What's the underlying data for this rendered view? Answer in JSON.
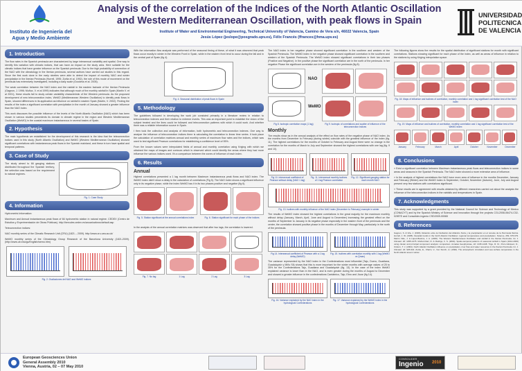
{
  "header": {
    "logo_left": [
      "Instituto de Ingeniería del",
      "Agua y Medio Ambiente"
    ],
    "title_line1": "Analysis of the correlation of the Indices of the North Atlantic Oscillation",
    "title_line2": "and Western Mediterranean Oscillation, with peak flows in Spain",
    "affiliation": "Institute of Water and Environmental Engineering, Technical University of Valencia, Camino de Vera s/n, 46022 Valencia, Spain",
    "authors": "Jesús López (jeslope@posgrado.upv.es), Félix Francés (ffrances@hma.upv.es)",
    "logo_right": [
      "UNIVERSIDAD",
      "POLITECNICA",
      "DE VALENCIA"
    ]
  },
  "sections": {
    "intro_title": "1. Introduction",
    "intro_p1": "The flow rates in the Spanish peninsula are characterized by large interannual variability and spatial. One way to identify this variation with climatic indices, that can have an impact on the study area. Here suitable for the climatic indices that have greater influence on the Spanish peninsula. Due to the high probability of connection of the NAO with the climatology in the Iberian peninsula, several authors have carried out studies in this regard. Since the first work done in the early nineties were able to detect the impact of monthly NAO and winter precipitation in the Iberian Peninsula (Hurrell, 1995; Zorita et al. 1992), the role of this mode of movement on the peninsula has extensively investigated, including a daily scale (Goodess et al. 2005).",
    "intro_p2": "The weak correlation between the NAO index and the rainfall in the eastern fachade of the Iberian Peninsula (Gagnon, J. 1996; Muñoz, V. et al 1999) indicates that although much of the monthly rainfall in Spain (Martín V. et al 2001), these results fail to study certain variability characteristic of the Western peninsula. As the proposed development of new teleconnection index, WeMO (Mediterranean Western Oscillation) to identify peak flows in Spain, showed differences in its application as influence on rainfall in eastern Spain (Martín, V. 2002). Finding the results of the index a significant correlation with precipitation in the month of January showed a greater influence than the NAO index.",
    "intro_p3": "This work discusses the possible influence of the levels of the North Atlantic Oscillation (NAO) which has been shown in various studies precedents its domain in climate regime in the region and Western Mediterranean Oscillation (WeMO) in the coastal maximum instantaneous in several basins of Spain.",
    "hyp_title": "2. Hypothesis",
    "hyp_p": "The main hypothesis we established for the development of this research is the idea that the teleconnection indices used in this study (North Atlantic Oscillation) and WeMO (Western Mediterranean Oscillation) showed significant correlations with instantaneous peak flows in the Spanish mainland, and these in turn have spatial and temporal patterns.",
    "case_title": "3. Case of Study",
    "case_p": "The study aimed to 66 gauging stations distributed throughout the Spanish territory, the selection was based on the requirement to natural regimes.",
    "case_cap": "Fig. 1. Case Study",
    "info_title": "4. Information",
    "info_p1": "Hydrometric Information:",
    "info_p2": "Maximum and Annual instantaneous peak flows of 66 hydrometric station in natural regime. CEDEX (Centro de Estudios y Experimentación de Obras Públicas). http://hercules.cedex.es/anuarioaforos/default.asp",
    "info_p3": "Teleconnection indices:",
    "info_p4": "NAO monthly series of the Climatic Research Unit (CRU) (1821 – 2009). http://www.cru.uea.ac.uk/",
    "info_p5": "WeMO monthly series of the Climatology Group Research of the Barcelona University (1821-2009). (http://www.ub.edu/gc/English/wemo.htm)",
    "info_cap": "Fig. 2. Oscilaciones del NAO and WeMO indices",
    "mid_top_p": "With the information flow analysis was performed of the seasonal timing of these, of what it was observed that peak flows occur mostly in winter in the Western Front in Spain, while in the eastern front tend to occur during the fall and in the central part of Spain (fig 4).",
    "mid_top_cap": "Fig. 4. Seasonal distribution of peak flows in Spain",
    "method_title": "5. Methodology",
    "method_p1": "The guidelines followed in developing the work job consisted primarily in a literature review in relation to teleconnection indexes and their relation to extreme events. This was an important point to establish the vision of the subject treated and the lines could be followed and teleconnection patterns with which it could work. And whether there was a reliable information source in Spain.",
    "method_p2": "I then took the collection and analysis of information, both hydrometric and teleconnection indexes. One way to analyze the influence of teleconnection indices there is calculating the correlation to linear time series. It took place the calculation of correlation matrices annual and monthly series of maximum flow rates and the indices, which was used to test significant Pearson correlations for establishing a confidence level of 95%.",
    "method_p3": "From the known values were interpolated fields of annual and monthly correlation using Kriging with which we obtained the maps of images and contours which is observed which could identify the areas where they had more influence the various indices used. It's a comparison between the zones of influence of each index.",
    "results_title": "6. Results",
    "annual_head": "Annual",
    "annual_p": "Highest correlations presented a 1 lag month between Maximum instantaneous peak flows and NAO index. The WeMO index didn't show a delay in the calculation of correlations (Fig 5). The NAO index shows a significant influence only in its negative phase, while the index WeMO has it in its two phases positive and negative (fig 6).",
    "annual_cap_a": "Fig. 5. Station significant at the annual correlations index",
    "annual_cap_b": "Fig. 6. Station significant for each phase of the indices",
    "annual_p2": "In the analysis of the annual correlation matrices was observed that after two lags, the correlation is lowered.",
    "lag_caps": [
      "Fig. 7. No lag",
      "1 Lag",
      "2 Lag",
      "3 Lag"
    ],
    "right_top_p": "The NAO index in her negative phase showed significant correlation in the southern and western of the Spanish Peninsula. The WeMO index in her negative phase showed significant correlation in the southern and western of the Spanish Peninsula. The WeMO index showed significant correlations in their two phases (Positive and Negative). In the positive phase the significant correlation are in the north of the peninsula. In her negative Phase the significant correlation are in the western of the peninsula (fig 8).",
    "nao_label": "NAO",
    "wemo_label": "WeMO",
    "fig8_cap": "Fig 8. Isotropic correlation maps (1 lag)",
    "fig9_cap": "Fig 9. Isotropic of correlations and scatter of influence of the teleconnection indices",
    "monthly_head": "Monthly",
    "monthly_p": "The results show as in the annual analysis of the effect on flow rates of the negative phase of NAO index. As the months from December to February (during winter) coincide with the greatest influence of the index (fig. 11). The highest correlations for the months of October to February and August there were no change in the correlation for the months of March to July and September showed the highest correlations with one lag (fig. 9 and 10).",
    "mcap1": "Fig 10. Interannual coefficient of Pearson without delay (NAO 1 lag)",
    "mcap2": "Fig. 11. Interannual monthly isolines of 1 lag Pearson correlation",
    "mcap3": "Fig. 12. Significant gauging station for each month NAO",
    "mcap4": "Fig. 13. Isolines with monthly influence of the NAO index (December to February) example in winter",
    "wemo_p1": "The results of WeMO index showed the highest correlations in the great majority for the maximum monthly without delay (January, March, April, June and August to December) increasing the greatest effect on the months of September to January in its negative phase especially in the eastern front of the peninsula and the center, the correlation showed positive phase in the months of December through May, particularly in the north of the peninsula.",
    "wcap1": "Fig 14. Interannual coefficient of Pearson with a 1 lag delay (WeMO)",
    "wcap2": "Fig. 15. Isolines with correlation monthly with 1 lag (WeMO vs Qmax)",
    "wemo_p2": "The variance represented by the NAO index in the Confederations most influential (Tajo, Duero, Guadiana, Guadalquivir y Miño Sil) shows that this is more important for the winter months with average values of 25 to 35% for the Confederations Tajo, Guadiana and Guadalquivir (fig. 13). In the case of the index WeMO explained variance is lower than in the NAO, and is even greater during the months of August to December and showed a greater influence in the confederations Cantábrico, Tajo, Ebro and Júcar (fig 14).",
    "vcap1": "Fig. 16. Variance explained by the NAO index in the hydrological Confederations",
    "vcap2": "Fig. 17. Variance explained by the WeMO index in the hydrological Confederations",
    "far_top_p": "The following figures show the results for the spatial distribution of significant stations for month with significant correlations. Stations showing significant for each phase of the index, as well as areas of influence in relation to the stations by using Kriging interpolation space.",
    "far_cap1": "Fig. 18. Maps of influence and isolines of correlation, monthly correlation and 1 lag significant correlation test of the NAO index",
    "far_cap2": "Fig. 19. Maps of influence and isolines of correlation, monthly correlation and 1 lag significant correlation test of the WeMO index",
    "month_labels": [
      "January",
      "February",
      "March",
      "April",
      "October",
      "November",
      "December"
    ],
    "concl_title": "8. Conclusions",
    "concl_p1": "» Exist a significant correlation between Maximum instantaneous peak flows and teleconnection indices in some areas and seasons in the Spanish Peninsula. The NAO index showed a more extensive area of influence.",
    "concl_p2": "» In the analysis of highest correlations the NAO have more area of influence in the months December, January and February (Winter) and the WeMO index in September, October, November (Autumn), June, July and August present very few stations with correlations significant.",
    "concl_p3": "» These results are in agreement with results obtained by different researches carried out about the analysis the influence of the teleconnection indices in the rainfalls and temperatures in Spain.",
    "ack_title": "7. Acknowledgments",
    "ack_p": "This study was supported by a grant provided by the National Council for Science and Technology of Mexico (CONACYT) and by the Spanish Ministry of Science and Innovation through the projects CGL2008-06474-C02-02/BTE and Consolider-Ingenio CSD2009-00065",
    "ref_title": "8. References",
    "ref_p": "Gagnon, S. & Vila, J. (1996). Relación entre la Oscilación del Atlántico Norte y la precipitación en el noreste de la Península Ibérica. Hurrell, J. W. (1995). Decadal trends in the North Atlantic Oscillation: regional temperatures and precipitation. Science, 269, 676-679. Martín Vide, J. & López-Bustins, J. A. (2006). The Western Mediterranean Oscillation and rainfall in the Iberian Peninsula. Int. J. Climatol. 26: 1455-1475. Muñoz-Díaz, D. & Rodrigo, F. S. (2004). Spatio-temporal patterns of seasonal rainfall in Spain (1912-2000) using cluster and principal component analysis: comparison. Annales Geophysicae, 22: 1435-1448. Trigo, R. M., Pozo-Vázquez, D., Osborn, T. J. (2004). North Atlantic Oscillation influence on precipitation, river flow and water resources in the Iberian Peninsula. Int. J. Climatol. 24: 925-944. Zorita, E., Kharin, V., Von Storch, H. (1992). The atmospheric circulation and sea surface temperature in the North Atlantic area in winter."
  },
  "footer": {
    "egu": [
      "European Geosciences Union",
      "General Assembly 2010",
      "Vienna, Austria, 02 – 07 May 2010"
    ],
    "ingenio_label": "Ingenio",
    "consolider_label": "CONSOLIDER",
    "year_label": "2010"
  },
  "colors": {
    "section_bar": "#4a67a8",
    "title": "#3a2d6b",
    "map_red": "#c85a5a"
  }
}
